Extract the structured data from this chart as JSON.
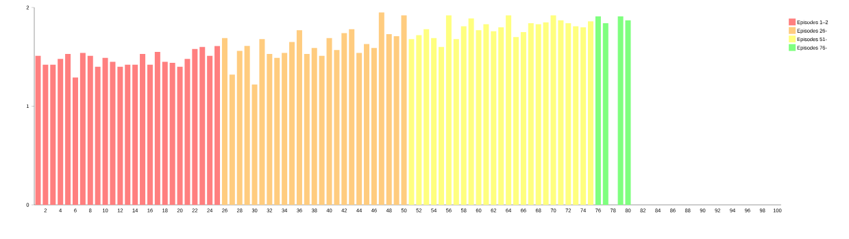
{
  "chart_data": {
    "type": "bar",
    "categories": [
      null,
      "2",
      null,
      "4",
      null,
      "6",
      null,
      "8",
      null,
      "10",
      null,
      "12",
      null,
      "14",
      null,
      "16",
      null,
      "18",
      null,
      "20",
      null,
      "22",
      null,
      "24",
      null,
      "26",
      null,
      "28",
      null,
      "30",
      null,
      "32",
      null,
      "34",
      null,
      "36",
      null,
      "38",
      null,
      "40",
      null,
      "42",
      null,
      "44",
      null,
      "46",
      null,
      "48",
      null,
      "50",
      null,
      "52",
      null,
      "54",
      null,
      "56",
      null,
      "58",
      null,
      "60",
      null,
      "62",
      null,
      "64",
      null,
      "66",
      null,
      "68",
      null,
      "70",
      null,
      "72",
      null,
      "74",
      null,
      "76",
      null,
      "78",
      null,
      "80",
      null,
      "82",
      null,
      "84",
      null,
      "86",
      null,
      "88",
      null,
      "90",
      null,
      "92",
      null,
      "94",
      null,
      "96",
      null,
      "98",
      null,
      "100"
    ],
    "series": [
      {
        "name": "Episodes 1–2",
        "color": "#ff7f7f",
        "values": [
          1.51,
          1.42,
          1.42,
          1.48,
          1.53,
          1.29,
          1.54,
          1.51,
          1.4,
          1.49,
          1.45,
          1.4,
          1.42,
          1.42,
          1.53,
          1.42,
          1.55,
          1.45,
          1.44,
          1.4,
          1.48,
          1.58,
          1.6,
          1.51,
          1.61,
          null,
          null,
          null,
          null,
          null,
          null,
          null,
          null,
          null,
          null,
          null,
          null,
          null,
          null,
          null,
          null,
          null,
          null,
          null,
          null,
          null,
          null,
          null,
          null,
          null,
          null,
          null,
          null,
          null,
          null,
          null,
          null,
          null,
          null,
          null,
          null,
          null,
          null,
          null,
          null,
          null,
          null,
          null,
          null,
          null,
          null,
          null,
          null,
          null,
          null,
          null,
          null,
          null,
          null,
          null,
          null,
          null,
          null,
          null,
          null,
          null,
          null,
          null,
          null,
          null,
          null,
          null,
          null,
          null,
          null,
          null,
          null,
          null,
          null,
          null
        ]
      },
      {
        "name": "Episodes 26-",
        "color": "#ffcc7f",
        "values": [
          null,
          null,
          null,
          null,
          null,
          null,
          null,
          null,
          null,
          null,
          null,
          null,
          null,
          null,
          null,
          null,
          null,
          null,
          null,
          null,
          null,
          null,
          null,
          null,
          null,
          1.69,
          1.32,
          1.56,
          1.61,
          1.22,
          1.68,
          1.53,
          1.49,
          1.54,
          1.65,
          1.77,
          1.53,
          1.59,
          1.51,
          1.69,
          1.57,
          1.74,
          1.78,
          1.54,
          1.63,
          1.59,
          1.95,
          1.73,
          1.71,
          1.92,
          null,
          null,
          null,
          null,
          null,
          null,
          null,
          null,
          null,
          null,
          null,
          null,
          null,
          null,
          null,
          null,
          null,
          null,
          null,
          null,
          null,
          null,
          null,
          null,
          null,
          null,
          null,
          null,
          null,
          null,
          null,
          null,
          null,
          null,
          null,
          null,
          null,
          null,
          null,
          null,
          null,
          null,
          null,
          null,
          null,
          null,
          null,
          null,
          null,
          null
        ]
      },
      {
        "name": "Episodes 51-",
        "color": "#ffff7f",
        "values": [
          null,
          null,
          null,
          null,
          null,
          null,
          null,
          null,
          null,
          null,
          null,
          null,
          null,
          null,
          null,
          null,
          null,
          null,
          null,
          null,
          null,
          null,
          null,
          null,
          null,
          null,
          null,
          null,
          null,
          null,
          null,
          null,
          null,
          null,
          null,
          null,
          null,
          null,
          null,
          null,
          null,
          null,
          null,
          null,
          null,
          null,
          null,
          null,
          null,
          null,
          1.68,
          1.72,
          1.78,
          1.69,
          1.6,
          1.92,
          1.68,
          1.81,
          1.89,
          1.77,
          1.83,
          1.76,
          1.8,
          1.92,
          1.7,
          1.75,
          1.84,
          1.83,
          1.85,
          1.92,
          1.87,
          1.84,
          1.81,
          1.8,
          1.86,
          null,
          null,
          null,
          null,
          null,
          null,
          null,
          null,
          null,
          null,
          null,
          null,
          null,
          null,
          null,
          null,
          null,
          null,
          null,
          null,
          null,
          null,
          null,
          null,
          null
        ]
      },
      {
        "name": "Episodes 76-",
        "color": "#7fff7f",
        "values": [
          null,
          null,
          null,
          null,
          null,
          null,
          null,
          null,
          null,
          null,
          null,
          null,
          null,
          null,
          null,
          null,
          null,
          null,
          null,
          null,
          null,
          null,
          null,
          null,
          null,
          null,
          null,
          null,
          null,
          null,
          null,
          null,
          null,
          null,
          null,
          null,
          null,
          null,
          null,
          null,
          null,
          null,
          null,
          null,
          null,
          null,
          null,
          null,
          null,
          null,
          null,
          null,
          null,
          null,
          null,
          null,
          null,
          null,
          null,
          null,
          null,
          null,
          null,
          null,
          null,
          null,
          null,
          null,
          null,
          null,
          null,
          null,
          null,
          null,
          null,
          1.91,
          1.84,
          null,
          1.91,
          1.87,
          null,
          null,
          null,
          null,
          null,
          null,
          null,
          null,
          null,
          null,
          null,
          null,
          null,
          null,
          null,
          null,
          null,
          null,
          null,
          null
        ]
      }
    ],
    "ylim": [
      0,
      2
    ],
    "yticks": [
      0,
      1,
      2
    ],
    "legend": "right"
  }
}
